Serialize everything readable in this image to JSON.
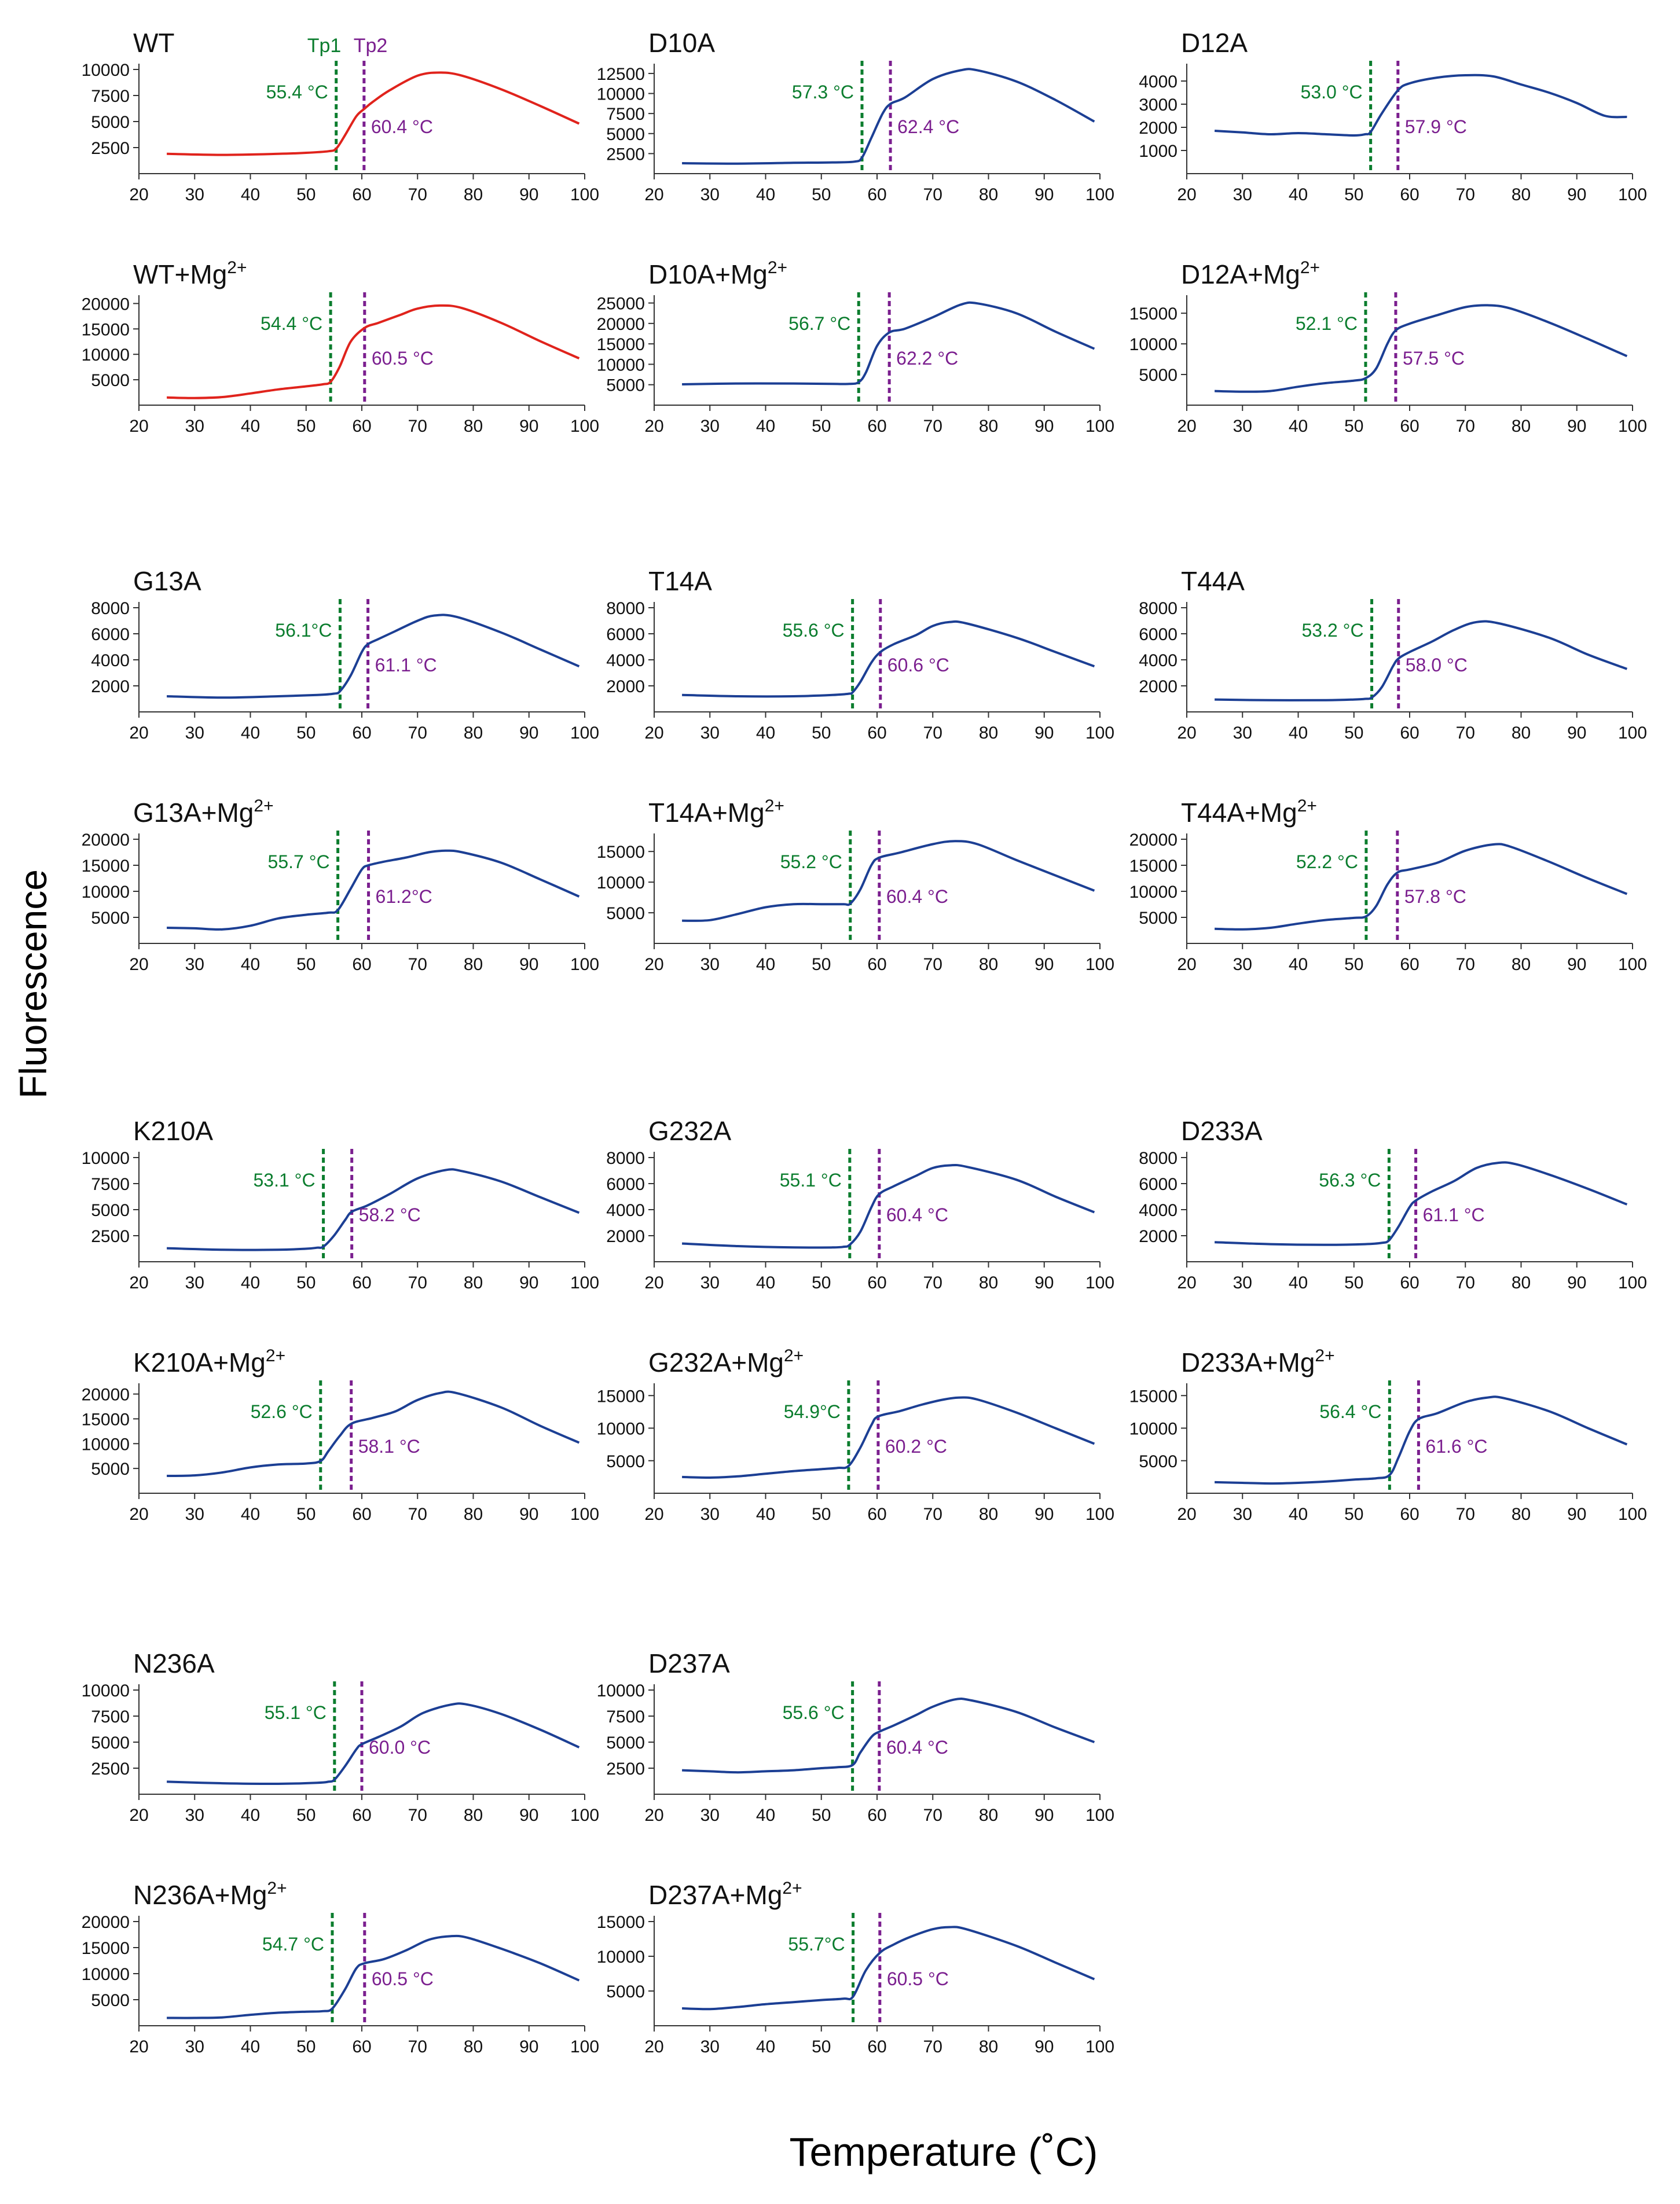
{
  "figure": {
    "ylabel": "Fluorescence",
    "xlabel": "Temperature (˚C)",
    "line_colors": {
      "wt": "#e0231c",
      "mutant": "#1c3f94"
    },
    "tp1_color": "#0b7d2e",
    "tp2_color": "#7b1f8f",
    "tp_header": {
      "tp1": "Tp1",
      "tp2": "Tp2"
    }
  },
  "chart_data": [
    {
      "type": "line",
      "title": "WT",
      "mg": false,
      "color": "wt",
      "ylim": [
        0,
        10000
      ],
      "yticks": [
        2500,
        5000,
        7500,
        10000
      ],
      "xlim": [
        20,
        100
      ],
      "tp1": 55.4,
      "tp2": 60.4,
      "tp1_label": "55.4 °C",
      "tp2_label": "60.4 °C",
      "x": [
        25,
        35,
        45,
        50,
        54,
        55.4,
        57,
        59,
        60.4,
        62,
        65,
        70,
        74,
        78,
        85,
        92,
        99
      ],
      "y": [
        1900,
        1800,
        1900,
        2000,
        2150,
        2400,
        3700,
        5500,
        6200,
        6900,
        8000,
        9400,
        9700,
        9400,
        8100,
        6500,
        4800
      ]
    },
    {
      "type": "line",
      "title": "D10A",
      "mg": false,
      "color": "mutant",
      "ylim": [
        0,
        13000
      ],
      "yticks": [
        2500,
        5000,
        7500,
        10000,
        12500
      ],
      "xlim": [
        20,
        100
      ],
      "tp1": 57.3,
      "tp2": 62.4,
      "tp1_label": "57.3 °C",
      "tp2_label": "62.4 °C",
      "x": [
        25,
        35,
        45,
        52,
        56,
        57.3,
        59,
        61,
        62.4,
        65,
        70,
        75,
        78,
        85,
        92,
        99
      ],
      "y": [
        1300,
        1250,
        1350,
        1400,
        1500,
        2000,
        4500,
        7500,
        8700,
        9500,
        11800,
        12900,
        12900,
        11500,
        9200,
        6500
      ]
    },
    {
      "type": "line",
      "title": "D12A",
      "mg": false,
      "color": "mutant",
      "ylim": [
        0,
        4500
      ],
      "yticks": [
        1000,
        2000,
        3000,
        4000
      ],
      "xlim": [
        20,
        100
      ],
      "tp1": 53.0,
      "tp2": 57.9,
      "tp1_label": "53.0 °C",
      "tp2_label": "57.9 °C",
      "x": [
        25,
        30,
        35,
        40,
        45,
        50,
        52,
        53,
        55,
        57.9,
        60,
        65,
        70,
        75,
        80,
        85,
        90,
        95,
        99
      ],
      "y": [
        1850,
        1780,
        1700,
        1750,
        1700,
        1650,
        1700,
        1800,
        2600,
        3600,
        3900,
        4150,
        4250,
        4200,
        3850,
        3500,
        3050,
        2500,
        2450
      ]
    },
    {
      "type": "line",
      "title": "WT+Mg",
      "mg": true,
      "color": "wt",
      "ylim": [
        0,
        20500
      ],
      "yticks": [
        5000,
        10000,
        15000,
        20000
      ],
      "xlim": [
        20,
        100
      ],
      "tp1": 54.4,
      "tp2": 60.5,
      "tp1_label": "54.4 °C",
      "tp2_label": "60.5 °C",
      "x": [
        25,
        30,
        35,
        40,
        45,
        50,
        53,
        54.4,
        56,
        58,
        60.5,
        63,
        67,
        70,
        74,
        78,
        85,
        92,
        99
      ],
      "y": [
        1500,
        1400,
        1600,
        2300,
        3100,
        3700,
        4100,
        4600,
        7500,
        12500,
        15200,
        16200,
        17800,
        19000,
        19600,
        19100,
        16200,
        12600,
        9200
      ]
    },
    {
      "type": "line",
      "title": "D10A+Mg",
      "mg": true,
      "color": "mutant",
      "ylim": [
        0,
        25500
      ],
      "yticks": [
        5000,
        10000,
        15000,
        20000,
        25000
      ],
      "xlim": [
        20,
        100
      ],
      "tp1": 56.7,
      "tp2": 62.2,
      "tp1_label": "56.7 °C",
      "tp2_label": "62.2 °C",
      "x": [
        25,
        35,
        45,
        52,
        55,
        56.7,
        58,
        60,
        62.2,
        65,
        70,
        75,
        78,
        85,
        92,
        99
      ],
      "y": [
        5100,
        5300,
        5300,
        5200,
        5200,
        5600,
        8000,
        14500,
        17800,
        18700,
        21500,
        24600,
        24900,
        22500,
        18000,
        13800
      ]
    },
    {
      "type": "line",
      "title": "D12A+Mg",
      "mg": true,
      "color": "mutant",
      "ylim": [
        0,
        17000
      ],
      "yticks": [
        5000,
        10000,
        15000
      ],
      "xlim": [
        20,
        100
      ],
      "tp1": 52.1,
      "tp2": 57.5,
      "tp1_label": "52.1 °C",
      "tp2_label": "57.5 °C",
      "x": [
        25,
        30,
        35,
        40,
        45,
        50,
        52.1,
        54,
        56,
        57.5,
        60,
        65,
        70,
        74,
        78,
        85,
        92,
        99
      ],
      "y": [
        2300,
        2200,
        2300,
        3000,
        3600,
        4000,
        4400,
        6000,
        10000,
        12200,
        13300,
        14700,
        16000,
        16300,
        15800,
        13500,
        10800,
        8000
      ]
    },
    {
      "type": "line",
      "title": "G13A",
      "mg": false,
      "color": "mutant",
      "ylim": [
        0,
        8000
      ],
      "yticks": [
        2000,
        4000,
        6000,
        8000
      ],
      "xlim": [
        20,
        100
      ],
      "tp1": 56.1,
      "tp2": 61.1,
      "tp1_label": "56.1°C",
      "tp2_label": "61.1 °C",
      "x": [
        25,
        35,
        45,
        52,
        55,
        56.1,
        58,
        60,
        61.1,
        63,
        66,
        70,
        73,
        77,
        85,
        92,
        99
      ],
      "y": [
        1200,
        1100,
        1200,
        1300,
        1400,
        1600,
        2800,
        4600,
        5200,
        5600,
        6200,
        7000,
        7400,
        7300,
        6100,
        4800,
        3500
      ]
    },
    {
      "type": "line",
      "title": "T14A",
      "mg": false,
      "color": "mutant",
      "ylim": [
        0,
        8000
      ],
      "yticks": [
        2000,
        4000,
        6000,
        8000
      ],
      "xlim": [
        20,
        100
      ],
      "tp1": 55.6,
      "tp2": 60.6,
      "tp1_label": "55.6 °C",
      "tp2_label": "60.6 °C",
      "x": [
        25,
        35,
        45,
        52,
        55,
        55.6,
        57,
        59,
        60.6,
        63,
        67,
        70,
        73,
        76,
        85,
        92,
        99
      ],
      "y": [
        1300,
        1200,
        1200,
        1300,
        1400,
        1500,
        2300,
        3800,
        4600,
        5200,
        5900,
        6600,
        6900,
        6800,
        5700,
        4600,
        3500
      ]
    },
    {
      "type": "line",
      "title": "T44A",
      "mg": false,
      "color": "mutant",
      "ylim": [
        0,
        8000
      ],
      "yticks": [
        2000,
        4000,
        6000,
        8000
      ],
      "xlim": [
        20,
        100
      ],
      "tp1": 53.2,
      "tp2": 58.0,
      "tp1_label": "53.2 °C",
      "tp2_label": "58.0 °C",
      "x": [
        25,
        35,
        45,
        50,
        52,
        53.2,
        55,
        57,
        58,
        60,
        64,
        68,
        72,
        76,
        85,
        92,
        99
      ],
      "y": [
        950,
        900,
        900,
        950,
        1000,
        1100,
        1900,
        3500,
        4100,
        4600,
        5400,
        6300,
        6900,
        6800,
        5700,
        4400,
        3300
      ]
    },
    {
      "type": "line",
      "title": "G13A+Mg",
      "mg": true,
      "color": "mutant",
      "ylim": [
        0,
        20000
      ],
      "yticks": [
        5000,
        10000,
        15000,
        20000
      ],
      "xlim": [
        20,
        100
      ],
      "tp1": 55.7,
      "tp2": 61.2,
      "tp1_label": "55.7 °C",
      "tp2_label": "61.2°C",
      "x": [
        25,
        30,
        35,
        40,
        45,
        50,
        54,
        55.7,
        58,
        60,
        61.2,
        64,
        68,
        72,
        75,
        78,
        85,
        92,
        99
      ],
      "y": [
        3000,
        2900,
        2700,
        3400,
        4800,
        5500,
        5900,
        6400,
        10500,
        14200,
        15000,
        15700,
        16500,
        17500,
        17800,
        17500,
        15500,
        12300,
        9000
      ]
    },
    {
      "type": "line",
      "title": "T14A+Mg",
      "mg": true,
      "color": "mutant",
      "ylim": [
        0,
        17000
      ],
      "yticks": [
        5000,
        10000,
        15000
      ],
      "xlim": [
        20,
        100
      ],
      "tp1": 55.2,
      "tp2": 60.4,
      "tp1_label": "55.2 °C",
      "tp2_label": "60.4 °C",
      "x": [
        25,
        30,
        35,
        40,
        45,
        50,
        54,
        55.2,
        57,
        59,
        60.4,
        64,
        70,
        74,
        78,
        85,
        92,
        99
      ],
      "y": [
        3700,
        3800,
        4800,
        5900,
        6400,
        6400,
        6400,
        6500,
        8800,
        12800,
        14000,
        14800,
        16200,
        16700,
        16200,
        13600,
        11100,
        8600
      ]
    },
    {
      "type": "line",
      "title": "T44A+Mg",
      "mg": true,
      "color": "mutant",
      "ylim": [
        0,
        20000
      ],
      "yticks": [
        5000,
        10000,
        15000,
        20000
      ],
      "xlim": [
        20,
        100
      ],
      "tp1": 52.2,
      "tp2": 57.8,
      "tp1_label": "52.2 °C",
      "tp2_label": "57.8 °C",
      "x": [
        25,
        30,
        35,
        40,
        45,
        50,
        52.2,
        54,
        56,
        57.8,
        60,
        65,
        70,
        75,
        78,
        85,
        92,
        99
      ],
      "y": [
        2800,
        2700,
        3000,
        3800,
        4500,
        4900,
        5200,
        7200,
        11300,
        13600,
        14200,
        15500,
        17800,
        19000,
        18600,
        15700,
        12500,
        9500
      ]
    },
    {
      "type": "line",
      "title": "K210A",
      "mg": false,
      "color": "mutant",
      "ylim": [
        0,
        10000
      ],
      "yticks": [
        2500,
        5000,
        7500,
        10000
      ],
      "xlim": [
        20,
        100
      ],
      "tp1": 53.1,
      "tp2": 58.2,
      "tp1_label": "53.1 °C",
      "tp2_label": "58.2 °C",
      "x": [
        25,
        35,
        45,
        50,
        52,
        53.1,
        55,
        57,
        58.2,
        61,
        65,
        70,
        75,
        78,
        85,
        92,
        99
      ],
      "y": [
        1300,
        1150,
        1150,
        1250,
        1350,
        1450,
        2500,
        4000,
        4800,
        5400,
        6500,
        8000,
        8800,
        8700,
        7700,
        6200,
        4700
      ]
    },
    {
      "type": "line",
      "title": "G232A",
      "mg": false,
      "color": "mutant",
      "ylim": [
        0,
        8000
      ],
      "yticks": [
        2000,
        4000,
        6000,
        8000
      ],
      "xlim": [
        20,
        100
      ],
      "tp1": 55.1,
      "tp2": 60.4,
      "tp1_label": "55.1 °C",
      "tp2_label": "60.4 °C",
      "x": [
        25,
        35,
        45,
        52,
        54,
        55.1,
        57,
        59,
        60.4,
        63,
        67,
        70,
        73,
        76,
        85,
        92,
        99
      ],
      "y": [
        1400,
        1200,
        1100,
        1100,
        1150,
        1300,
        2300,
        4200,
        5200,
        5800,
        6600,
        7200,
        7400,
        7300,
        6300,
        5000,
        3800
      ]
    },
    {
      "type": "line",
      "title": "D233A",
      "mg": false,
      "color": "mutant",
      "ylim": [
        0,
        8000
      ],
      "yticks": [
        2000,
        4000,
        6000,
        8000
      ],
      "xlim": [
        20,
        100
      ],
      "tp1": 56.3,
      "tp2": 61.1,
      "tp1_label": "56.3 °C",
      "tp2_label": "61.1 °C",
      "x": [
        25,
        35,
        45,
        52,
        55,
        56.3,
        58,
        60,
        61.1,
        64,
        68,
        72,
        76,
        79,
        85,
        92,
        99
      ],
      "y": [
        1500,
        1350,
        1300,
        1350,
        1450,
        1650,
        2700,
        4200,
        4700,
        5400,
        6200,
        7200,
        7600,
        7500,
        6700,
        5600,
        4400
      ]
    },
    {
      "type": "line",
      "title": "K210A+Mg",
      "mg": true,
      "color": "mutant",
      "ylim": [
        0,
        21000
      ],
      "yticks": [
        5000,
        10000,
        15000,
        20000
      ],
      "xlim": [
        20,
        100
      ],
      "tp1": 52.6,
      "tp2": 58.1,
      "tp1_label": "52.6 °C",
      "tp2_label": "58.1 °C",
      "x": [
        25,
        30,
        35,
        40,
        45,
        50,
        52.6,
        54,
        56,
        58.1,
        62,
        66,
        70,
        74,
        77,
        85,
        92,
        99
      ],
      "y": [
        3500,
        3600,
        4200,
        5200,
        5800,
        6000,
        6500,
        8500,
        11500,
        14000,
        15200,
        16500,
        18800,
        20200,
        20200,
        17300,
        13600,
        10200
      ]
    },
    {
      "type": "line",
      "title": "G232A+Mg",
      "mg": true,
      "color": "mutant",
      "ylim": [
        0,
        16000
      ],
      "yticks": [
        5000,
        10000,
        15000
      ],
      "xlim": [
        20,
        100
      ],
      "tp1": 54.9,
      "tp2": 60.2,
      "tp1_label": "54.9°C",
      "tp2_label": "60.2 °C",
      "x": [
        25,
        30,
        35,
        40,
        45,
        50,
        53,
        54.9,
        57,
        59,
        60.2,
        64,
        68,
        72,
        75,
        78,
        85,
        92,
        99
      ],
      "y": [
        2500,
        2400,
        2600,
        3000,
        3400,
        3700,
        3900,
        4200,
        7000,
        10500,
        11800,
        12600,
        13600,
        14400,
        14700,
        14400,
        12400,
        10000,
        7600
      ]
    },
    {
      "type": "line",
      "title": "D233A+Mg",
      "mg": true,
      "color": "mutant",
      "ylim": [
        0,
        16000
      ],
      "yticks": [
        5000,
        10000,
        15000
      ],
      "xlim": [
        20,
        100
      ],
      "tp1": 56.4,
      "tp2": 61.6,
      "tp1_label": "56.4 °C",
      "tp2_label": "61.6 °C",
      "x": [
        25,
        30,
        35,
        40,
        45,
        50,
        54,
        56.4,
        58,
        60,
        61.6,
        65,
        70,
        74,
        77,
        85,
        92,
        99
      ],
      "y": [
        1700,
        1600,
        1500,
        1600,
        1800,
        2100,
        2300,
        2800,
        5500,
        9500,
        11400,
        12300,
        14000,
        14700,
        14600,
        12600,
        10000,
        7500
      ]
    },
    {
      "type": "line",
      "title": "N236A",
      "mg": false,
      "color": "mutant",
      "ylim": [
        0,
        10000
      ],
      "yticks": [
        2500,
        5000,
        7500,
        10000
      ],
      "xlim": [
        20,
        100
      ],
      "tp1": 55.1,
      "tp2": 60.0,
      "tp1_label": "55.1 °C",
      "tp2_label": "60.0 °C",
      "x": [
        25,
        35,
        45,
        52,
        54,
        55.1,
        57,
        59,
        60,
        63,
        67,
        71,
        76,
        79,
        85,
        92,
        99
      ],
      "y": [
        1200,
        1050,
        1000,
        1100,
        1200,
        1400,
        2700,
        4300,
        4800,
        5500,
        6500,
        7800,
        8600,
        8600,
        7700,
        6200,
        4500
      ]
    },
    {
      "type": "line",
      "title": "D237A",
      "mg": false,
      "color": "mutant",
      "ylim": [
        0,
        10000
      ],
      "yticks": [
        2500,
        5000,
        7500,
        10000
      ],
      "xlim": [
        20,
        100
      ],
      "tp1": 55.6,
      "tp2": 60.4,
      "tp1_label": "55.6 °C",
      "tp2_label": "60.4 °C",
      "x": [
        25,
        30,
        35,
        40,
        45,
        50,
        53,
        55.6,
        57,
        59,
        60.4,
        63,
        67,
        70,
        74,
        77,
        85,
        92,
        99
      ],
      "y": [
        2300,
        2200,
        2100,
        2200,
        2300,
        2500,
        2600,
        2800,
        4000,
        5500,
        6000,
        6600,
        7600,
        8400,
        9100,
        9000,
        7900,
        6400,
        5000
      ]
    },
    {
      "type": "line",
      "title": "N236A+Mg",
      "mg": true,
      "color": "mutant",
      "ylim": [
        0,
        20000
      ],
      "yticks": [
        5000,
        10000,
        15000,
        20000
      ],
      "xlim": [
        20,
        100
      ],
      "tp1": 54.7,
      "tp2": 60.5,
      "tp1_label": "54.7 °C",
      "tp2_label": "60.5 °C",
      "x": [
        25,
        30,
        35,
        40,
        45,
        50,
        53,
        54.7,
        57,
        59,
        60.5,
        64,
        68,
        72,
        76,
        79,
        85,
        92,
        99
      ],
      "y": [
        1500,
        1500,
        1600,
        2100,
        2500,
        2700,
        2800,
        3300,
        7000,
        11000,
        12000,
        12800,
        14500,
        16500,
        17200,
        16900,
        14800,
        12000,
        8700
      ]
    },
    {
      "type": "line",
      "title": "D237A+Mg",
      "mg": true,
      "color": "mutant",
      "ylim": [
        0,
        15000
      ],
      "yticks": [
        5000,
        10000,
        15000
      ],
      "xlim": [
        20,
        100
      ],
      "tp1": 55.7,
      "tp2": 60.5,
      "tp1_label": "55.7°C",
      "tp2_label": "60.5 °C",
      "x": [
        25,
        30,
        35,
        40,
        45,
        50,
        54,
        55.7,
        58,
        60.5,
        63,
        66,
        70,
        73,
        76,
        85,
        92,
        99
      ],
      "y": [
        2500,
        2400,
        2700,
        3100,
        3400,
        3700,
        3900,
        4200,
        8000,
        10500,
        11700,
        12800,
        13900,
        14200,
        13900,
        11500,
        9100,
        6700
      ]
    }
  ]
}
